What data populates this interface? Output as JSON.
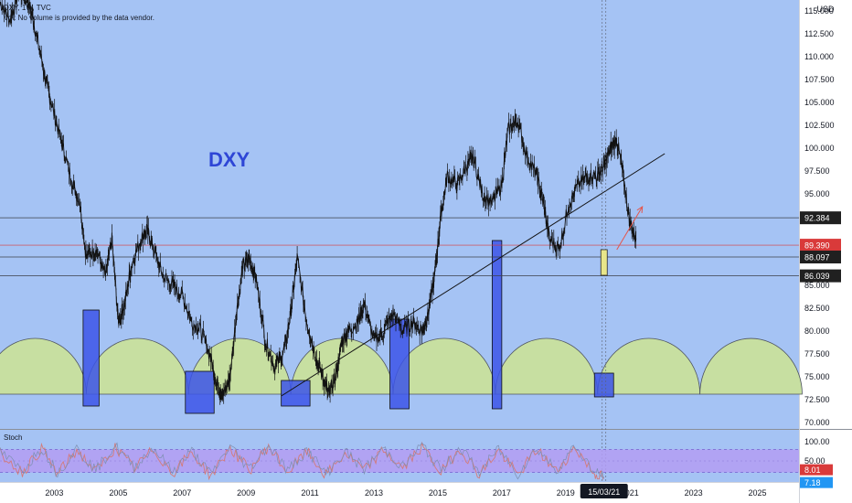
{
  "header": {
    "symbol_line": "DXY, 1W, TVC",
    "volume_note": "Vol: No volume is provided by the data vendor."
  },
  "main_label": "DXY",
  "indicator_label": "Stoch",
  "colors": {
    "plot_bg": "#a5c3f4",
    "candle": "#111111",
    "box_fill": "#3c55e8",
    "cycle_fill": "#c7dfa1",
    "highlight_box": "#e8e68a",
    "stoch_band": "#b39df2",
    "stoch_line": "#d47a7a",
    "arrow": "#e4564b",
    "label_dark": "#202020",
    "label_red": "#d93a3a",
    "label_blue": "#2196f3"
  },
  "chart_data": {
    "type": "line",
    "title": "DXY",
    "xlabel": "",
    "ylabel": "USD",
    "xlim": [
      2001.3,
      2026.3
    ],
    "ylim": [
      69.3,
      116.2
    ],
    "x_ticks": [
      "2003",
      "2005",
      "2007",
      "2009",
      "2011",
      "2013",
      "2015",
      "2017",
      "2019",
      "2021",
      "2023",
      "2025"
    ],
    "y_ticks": [
      "70.000",
      "72.500",
      "75.000",
      "77.500",
      "80.000",
      "82.500",
      "85.000",
      "87.500",
      "90.000",
      "92.500",
      "95.000",
      "97.500",
      "100.000",
      "102.500",
      "105.000",
      "107.500",
      "110.000",
      "112.500",
      "115.000"
    ],
    "hidden_y_ticks": [
      "87.500",
      "90.000",
      "92.500"
    ],
    "series": [
      {
        "x": [
          2001.3,
          2001.6,
          2001.9,
          2002.2,
          2002.4,
          2002.7,
          2002.9,
          2003.2,
          2003.5,
          2003.8,
          2004.0,
          2004.3,
          2004.6,
          2004.8,
          2005.0,
          2005.2,
          2005.4,
          2005.7,
          2005.9,
          2006.1,
          2006.4,
          2006.7,
          2007.0,
          2007.3,
          2007.6,
          2007.9,
          2008.1,
          2008.3,
          2008.5,
          2008.7,
          2008.9,
          2009.1,
          2009.3,
          2009.6,
          2009.9,
          2010.2,
          2010.4,
          2010.6,
          2010.9,
          2011.2,
          2011.4,
          2011.6,
          2011.8,
          2012.0,
          2012.2,
          2012.5,
          2012.7,
          2013.0,
          2013.3,
          2013.6,
          2013.9,
          2014.2,
          2014.5,
          2014.7,
          2014.9,
          2015.1,
          2015.3,
          2015.6,
          2015.9,
          2016.1,
          2016.4,
          2016.7,
          2017.0,
          2017.2,
          2017.5,
          2017.8,
          2018.1,
          2018.3,
          2018.5,
          2018.8,
          2019.1,
          2019.4,
          2019.7,
          2020.0,
          2020.2,
          2020.4,
          2020.6,
          2020.8,
          2021.0,
          2021.2
        ],
        "y": [
          116,
          114,
          117,
          116,
          113,
          108,
          105,
          101,
          97,
          94,
          88,
          89,
          86,
          90,
          81,
          83,
          87,
          90,
          91,
          89,
          86,
          85,
          84,
          81,
          80,
          77,
          74,
          73,
          75,
          82,
          87,
          88,
          86,
          79,
          76,
          78,
          82,
          88,
          81,
          77,
          75,
          73,
          75,
          79,
          80,
          81,
          83,
          79,
          80,
          82,
          80,
          81,
          80,
          82,
          86,
          93,
          97,
          96,
          98,
          99,
          95,
          94,
          96,
          102,
          103,
          99,
          97,
          94,
          90,
          89,
          94,
          96,
          97,
          97,
          98,
          100,
          101,
          97,
          92,
          90
        ]
      }
    ],
    "cycle_boxes": [
      {
        "x_start": 2003.9,
        "x_end": 2004.4,
        "y_low": 71.8,
        "y_high": 82.3
      },
      {
        "x_start": 2007.1,
        "x_end": 2008.0,
        "y_low": 71.0,
        "y_high": 75.6
      },
      {
        "x_start": 2010.1,
        "x_end": 2011.0,
        "y_low": 71.8,
        "y_high": 74.6
      },
      {
        "x_start": 2013.5,
        "x_end": 2014.1,
        "y_low": 71.5,
        "y_high": 81.3
      },
      {
        "x_start": 2016.7,
        "x_end": 2017.0,
        "y_low": 71.5,
        "y_high": 89.9
      },
      {
        "x_start": 2019.9,
        "x_end": 2020.5,
        "y_low": 72.8,
        "y_high": 75.4
      }
    ],
    "cycle_arcs": {
      "base": 73.1,
      "peak": 79.2,
      "centers": [
        2002.4,
        2005.6,
        2008.8,
        2012.0,
        2015.2,
        2018.4,
        2021.6,
        2024.8
      ]
    },
    "trendline": {
      "x1": 2010.1,
      "y1": 72.9,
      "x2": 2022.1,
      "y2": 99.4
    },
    "target_arrow": {
      "x1": 2020.6,
      "y1": 88.9,
      "x2": 2021.4,
      "y2": 93.6
    },
    "highlight_box": {
      "x_start": 2020.1,
      "x_end": 2020.3,
      "y_low": 86.1,
      "y_high": 88.9
    },
    "vertical_marker_x": 2020.2,
    "hlines": [
      {
        "y": 92.384,
        "label": "92.384",
        "style": "dark"
      },
      {
        "y": 89.39,
        "label": "89.390",
        "style": "red"
      },
      {
        "y": 88.097,
        "label": "88.097",
        "style": "dark"
      },
      {
        "y": 86.039,
        "label": "86.039",
        "style": "dark"
      }
    ],
    "date_label": "15/03/21",
    "stoch": {
      "ylim": [
        0,
        100
      ],
      "band": [
        20,
        80
      ],
      "y_ticks": [
        "100.00",
        "50.00"
      ],
      "k_label": "8.01",
      "d_label": "7.18",
      "x": [
        2001.3,
        2002.0,
        2002.6,
        2003.1,
        2003.7,
        2004.3,
        2004.9,
        2005.5,
        2006.1,
        2006.7,
        2007.3,
        2007.9,
        2008.5,
        2009.1,
        2009.7,
        2010.3,
        2010.9,
        2011.5,
        2012.1,
        2012.7,
        2013.3,
        2013.9,
        2014.5,
        2015.1,
        2015.7,
        2016.3,
        2016.9,
        2017.5,
        2018.1,
        2018.7,
        2019.3,
        2019.9,
        2020.2
      ],
      "values": [
        70,
        20,
        82,
        15,
        78,
        22,
        85,
        30,
        80,
        18,
        72,
        10,
        85,
        25,
        88,
        20,
        75,
        12,
        70,
        25,
        78,
        30,
        88,
        20,
        82,
        15,
        78,
        12,
        80,
        22,
        85,
        15,
        8
      ]
    }
  }
}
